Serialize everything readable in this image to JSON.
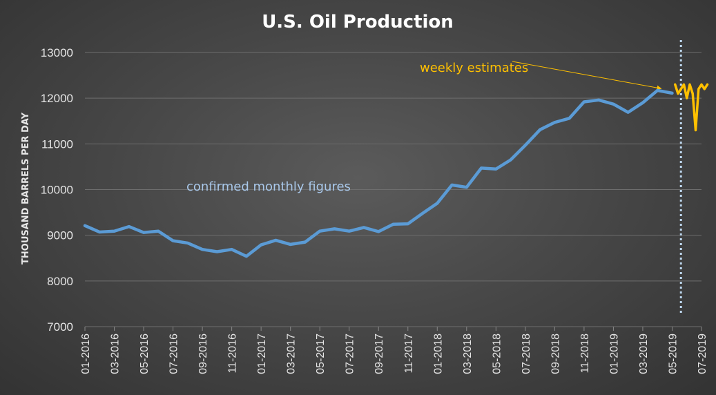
{
  "chart_data": {
    "type": "line",
    "title": "U.S. Oil Production",
    "xlabel": "",
    "ylabel": "THOUSAND BARRELS PER DAY",
    "ylim": [
      7000,
      13000
    ],
    "yticks": [
      7000,
      8000,
      9000,
      10000,
      11000,
      12000,
      13000
    ],
    "xticks": [
      "01-2016",
      "03-2016",
      "05-2016",
      "07-2016",
      "09-2016",
      "11-2016",
      "01-2017",
      "03-2017",
      "05-2017",
      "07-2017",
      "09-2017",
      "11-2017",
      "01-2018",
      "03-2018",
      "05-2018",
      "07-2018",
      "09-2018",
      "11-2018",
      "01-2019",
      "03-2019",
      "05-2019",
      "07-2019"
    ],
    "grid": true,
    "colors": {
      "monthly": "#5b9bd5",
      "weekly": "#ffc000",
      "divider": "#bdd7ee",
      "grid": "#6e6e6e"
    },
    "series": [
      {
        "name": "confirmed monthly figures",
        "x": [
          "01-2016",
          "02-2016",
          "03-2016",
          "04-2016",
          "05-2016",
          "06-2016",
          "07-2016",
          "08-2016",
          "09-2016",
          "10-2016",
          "11-2016",
          "12-2016",
          "01-2017",
          "02-2017",
          "03-2017",
          "04-2017",
          "05-2017",
          "06-2017",
          "07-2017",
          "08-2017",
          "09-2017",
          "10-2017",
          "11-2017",
          "12-2017",
          "01-2018",
          "02-2018",
          "03-2018",
          "04-2018",
          "05-2018",
          "06-2018",
          "07-2018",
          "08-2018",
          "09-2018",
          "10-2018",
          "11-2018",
          "12-2018",
          "01-2019",
          "02-2019",
          "03-2019",
          "04-2019",
          "05-2019"
        ],
        "values": [
          9210,
          9070,
          9090,
          9190,
          9060,
          9090,
          8880,
          8830,
          8690,
          8640,
          8690,
          8540,
          8790,
          8890,
          8800,
          8850,
          9090,
          9140,
          9090,
          9170,
          9080,
          9240,
          9250,
          9480,
          9700,
          10100,
          10050,
          10470,
          10450,
          10650,
          10970,
          11310,
          11470,
          11560,
          11920,
          11960,
          11870,
          11690,
          11900,
          12170,
          12110
        ]
      },
      {
        "name": "weekly estimates",
        "x": [
          40.2,
          40.4,
          40.6,
          40.8,
          41.0,
          41.2,
          41.4,
          41.6,
          41.8,
          42.0,
          42.2,
          42.4
        ],
        "values": [
          12300,
          12100,
          12200,
          12300,
          12000,
          12300,
          12100,
          11300,
          12200,
          12300,
          12200,
          12300
        ]
      }
    ],
    "annotations": [
      {
        "text": "weekly estimates",
        "arrow_to_month": 40.2,
        "arrow_to_value": 12120
      },
      {
        "text": "confirmed monthly figures"
      }
    ],
    "divider_at_month": 40.6
  }
}
